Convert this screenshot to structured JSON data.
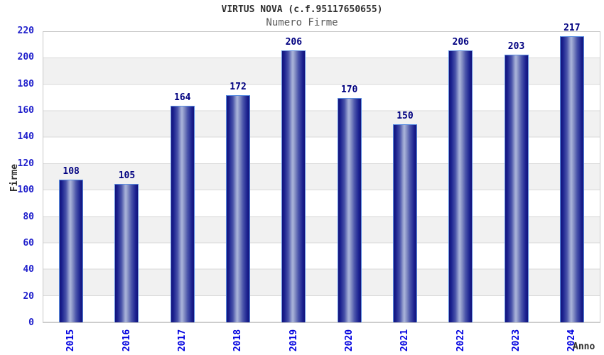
{
  "header": {
    "title": "VIRTUS NOVA (c.f.95117650655)",
    "subtitle": "Numero Firme"
  },
  "chart_data": {
    "type": "bar",
    "title": "VIRTUS NOVA (c.f.95117650655)",
    "subtitle": "Numero Firme",
    "xlabel": "Anno",
    "ylabel": "Firme",
    "categories": [
      "2015",
      "2016",
      "2017",
      "2018",
      "2019",
      "2020",
      "2021",
      "2022",
      "2023",
      "2024"
    ],
    "values": [
      108,
      105,
      164,
      172,
      206,
      170,
      150,
      206,
      203,
      217
    ],
    "ylim": [
      0,
      220
    ],
    "yticks": [
      0,
      20,
      40,
      60,
      80,
      100,
      120,
      140,
      160,
      180,
      200,
      220
    ],
    "grid": "horizontal gridlines every 20 units with alternating white/light-gray bands",
    "legend": "none",
    "bar_value_labels_shown": true,
    "colors": {
      "bar_edge_dark": "#12127a",
      "bar_center_light": "#aab4da",
      "bar_outline": "#5b8de0",
      "value_label": "#000080",
      "ytick_label": "#2222cc",
      "xtick_label": "#0000e0",
      "title": "#303030",
      "subtitle": "#5a5a5a",
      "axis_title": "#303030",
      "band_gray": "#f1f1f1",
      "grid_line": "#d9d9d9",
      "plot_border": "#c8c8c8",
      "background": "#ffffff"
    }
  }
}
